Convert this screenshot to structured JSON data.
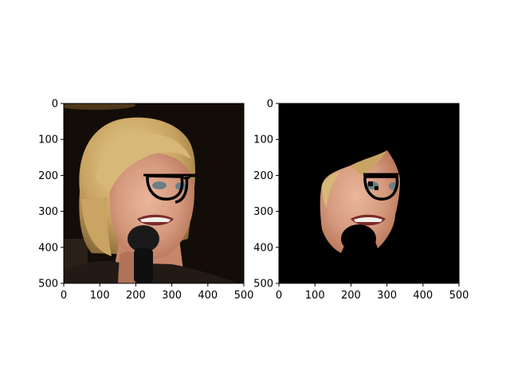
{
  "figure": {
    "background": "#ffffff",
    "panels": [
      {
        "name": "original-image-panel",
        "image_description": "Woman with short blonde hair holding a black microphone, dark background; hand-drawn black eyeglasses overlaid on her eyes",
        "masked": false
      },
      {
        "name": "masked-face-panel",
        "image_description": "Same image with everything except a segmented face region set to black; black glasses overlay visible",
        "masked": true
      }
    ]
  },
  "chart_data": [
    {
      "type": "image",
      "x_ticks": [
        0,
        100,
        200,
        300,
        400,
        500
      ],
      "y_ticks": [
        0,
        100,
        200,
        300,
        400,
        500
      ],
      "xlim": [
        0,
        500
      ],
      "ylim": [
        500,
        0
      ],
      "y_inverted": true,
      "grid": false
    },
    {
      "type": "image",
      "x_ticks": [
        0,
        100,
        200,
        300,
        400,
        500
      ],
      "y_ticks": [
        0,
        100,
        200,
        300,
        400,
        500
      ],
      "xlim": [
        0,
        500
      ],
      "ylim": [
        500,
        0
      ],
      "y_inverted": true,
      "grid": false
    }
  ]
}
